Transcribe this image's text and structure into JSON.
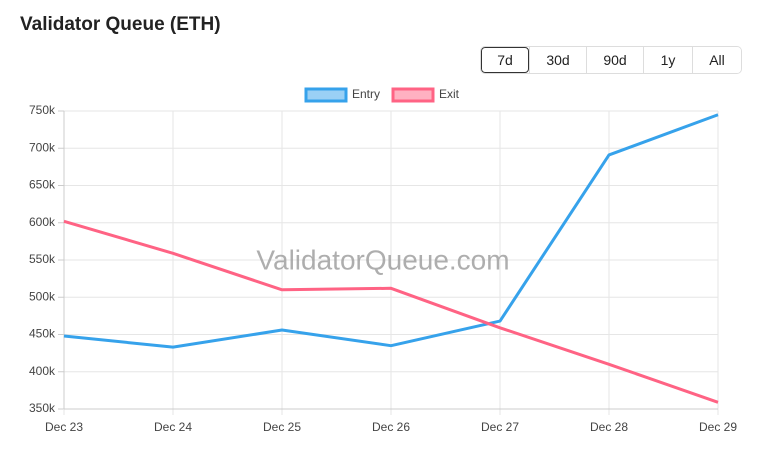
{
  "range_buttons": [
    {
      "label": "7d",
      "active": true
    },
    {
      "label": "30d",
      "active": false
    },
    {
      "label": "90d",
      "active": false
    },
    {
      "label": "1y",
      "active": false
    },
    {
      "label": "All",
      "active": false
    }
  ],
  "chart_data": {
    "type": "line",
    "title": "Validator Queue (ETH)",
    "watermark": "ValidatorQueue.com",
    "categories": [
      "Dec 23",
      "Dec 24",
      "Dec 25",
      "Dec 26",
      "Dec 27",
      "Dec 28",
      "Dec 29"
    ],
    "series": [
      {
        "name": "Entry",
        "color": "#36a2eb",
        "values": [
          448000,
          433000,
          456000,
          435000,
          468000,
          691000,
          745000
        ]
      },
      {
        "name": "Exit",
        "color": "#ff6384",
        "values": [
          602000,
          559000,
          510000,
          512000,
          459000,
          410000,
          359000
        ]
      }
    ],
    "ylim": [
      350000,
      750000
    ],
    "yticks": [
      {
        "value": 350000,
        "label": "350k"
      },
      {
        "value": 400000,
        "label": "400k"
      },
      {
        "value": 450000,
        "label": "450k"
      },
      {
        "value": 500000,
        "label": "500k"
      },
      {
        "value": 550000,
        "label": "550k"
      },
      {
        "value": 600000,
        "label": "600k"
      },
      {
        "value": 650000,
        "label": "650k"
      },
      {
        "value": 700000,
        "label": "700k"
      },
      {
        "value": 750000,
        "label": "750k"
      }
    ],
    "grid": true,
    "legend": "top"
  }
}
